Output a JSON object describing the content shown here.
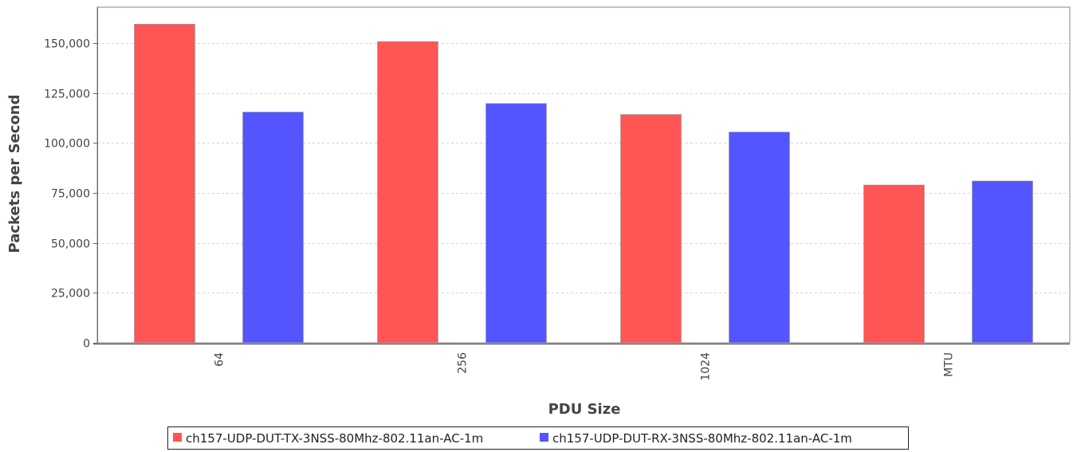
{
  "chart_data": {
    "type": "bar",
    "title": "",
    "xlabel": "PDU Size",
    "ylabel": "Packets per Second",
    "categories": [
      "64",
      "256",
      "1024",
      "MTU"
    ],
    "series": [
      {
        "name": "ch157-UDP-DUT-TX-3NSS-80Mhz-802.11an-AC-1m",
        "color": "#ff5555",
        "values": [
          159500,
          150800,
          114300,
          79000
        ]
      },
      {
        "name": "ch157-UDP-DUT-RX-3NSS-80Mhz-802.11an-AC-1m",
        "color": "#5555ff",
        "values": [
          115500,
          119800,
          105500,
          81000
        ]
      }
    ],
    "ylim": [
      0,
      168000
    ],
    "yticks": [
      0,
      25000,
      50000,
      75000,
      100000,
      125000,
      150000
    ],
    "ytick_labels": [
      "0",
      "25,000",
      "50,000",
      "75,000",
      "100,000",
      "125,000",
      "150,000"
    ],
    "grid": true,
    "legend_position": "bottom-center"
  }
}
